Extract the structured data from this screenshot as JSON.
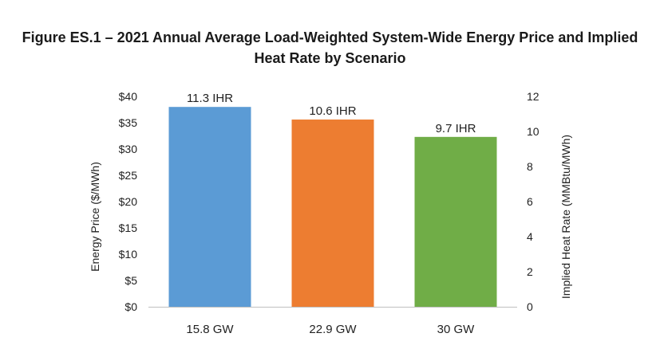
{
  "chart_data": {
    "type": "bar",
    "title_line1": "Figure ES.1 – 2021 Annual Average Load-Weighted System-Wide Energy Price and Implied",
    "title_line2": "Heat Rate by Scenario",
    "categories": [
      "15.8 GW",
      "22.9 GW",
      "30 GW"
    ],
    "values": [
      38,
      35.6,
      32.3
    ],
    "data_labels": [
      "11.3 IHR",
      "10.6 IHR",
      "9.7 IHR"
    ],
    "colors": [
      "#5b9bd5",
      "#ed7d31",
      "#70ad47"
    ],
    "ylabel": "Energy Price ($/MWh)",
    "y2label": "Implied Heat Rate (MMBtu/MWh)",
    "ylim": [
      0,
      40
    ],
    "y2lim": [
      0,
      12
    ],
    "yticks": [
      "$0",
      "$5",
      "$10",
      "$15",
      "$20",
      "$25",
      "$30",
      "$35",
      "$40"
    ],
    "y2ticks": [
      "0",
      "2",
      "4",
      "6",
      "8",
      "10",
      "12"
    ],
    "grid": false
  }
}
